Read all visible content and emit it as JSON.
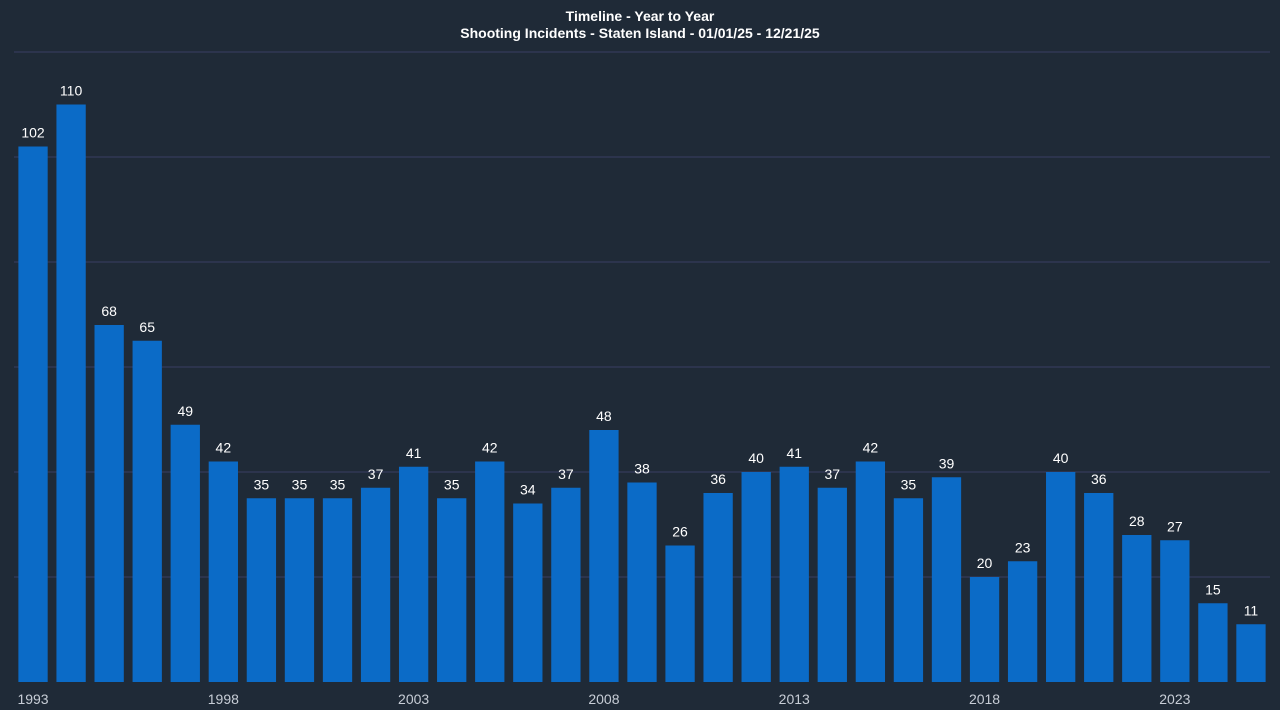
{
  "chart_data": {
    "type": "bar",
    "title": "Timeline - Year to Year",
    "subtitle": "Shooting Incidents - Staten Island - 01/01/25 - 12/21/25",
    "xlabel": "",
    "ylabel": "",
    "categories": [
      "1993",
      "1994",
      "1995",
      "1996",
      "1997",
      "1998",
      "1999",
      "2000",
      "2001",
      "2002",
      "2003",
      "2004",
      "2005",
      "2006",
      "2007",
      "2008",
      "2009",
      "2010",
      "2011",
      "2012",
      "2013",
      "2014",
      "2015",
      "2016",
      "2017",
      "2018",
      "2019",
      "2020",
      "2021",
      "2022",
      "2023",
      "2024",
      "2025"
    ],
    "values": [
      102,
      110,
      68,
      65,
      49,
      42,
      35,
      35,
      35,
      37,
      41,
      35,
      42,
      34,
      37,
      48,
      38,
      26,
      36,
      40,
      41,
      37,
      42,
      35,
      39,
      20,
      23,
      40,
      36,
      28,
      27,
      15,
      11
    ],
    "x_tick_labels": [
      "1993",
      "1998",
      "2003",
      "2008",
      "2013",
      "2018",
      "2023"
    ],
    "ylim": [
      0,
      120
    ],
    "grid": true,
    "legend": "none",
    "colors": {
      "background": "#1f2a37",
      "bar": "#0b6bc7",
      "gridline": "#3a3f63",
      "text": "#ffffff",
      "tick_text": "#c7cdd6"
    }
  }
}
